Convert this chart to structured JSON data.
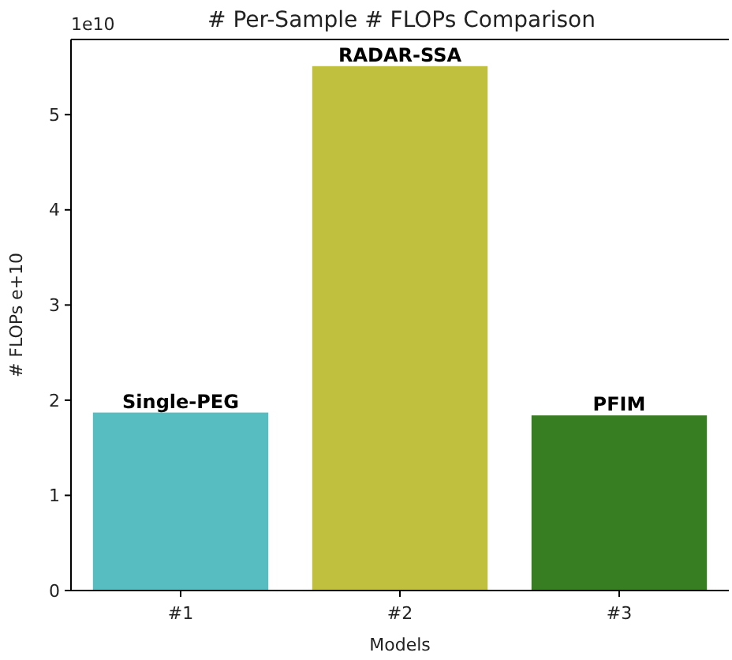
{
  "chart_data": {
    "type": "bar",
    "title": "# Per-Sample # FLOPs Comparison",
    "xlabel": "Models",
    "ylabel": "# FLOPs e+10",
    "categories": [
      "#1",
      "#2",
      "#3"
    ],
    "values": [
      1.87,
      5.51,
      1.84
    ],
    "colors": [
      "#58bdc0",
      "#c0bf3e",
      "#377d22"
    ],
    "ylim": [
      0,
      5.79
    ],
    "yticks": [
      0,
      1,
      2,
      3,
      4,
      5
    ],
    "grid": false,
    "annotations": [
      {
        "text": "Single-PEG",
        "x": "#1",
        "y": 1.87
      },
      {
        "text": "RADAR-SSA",
        "x": "#2",
        "y": 5.51
      },
      {
        "text": "PFIM",
        "x": "#3",
        "y": 1.84
      },
      "1e10"
    ]
  }
}
